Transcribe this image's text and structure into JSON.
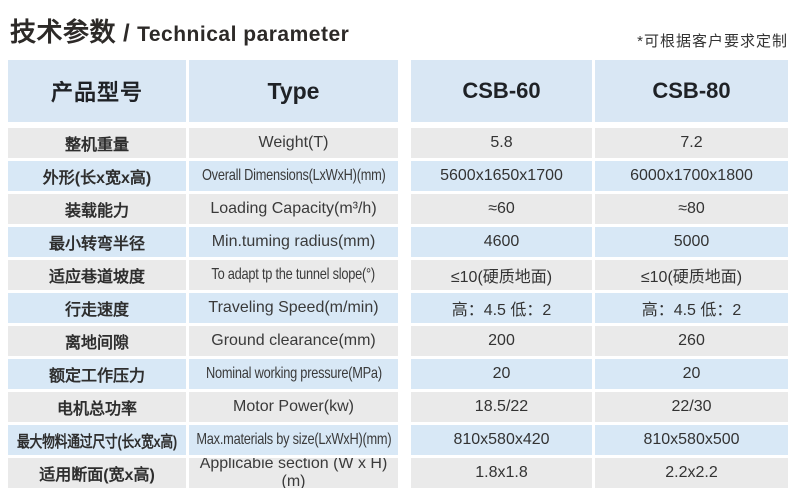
{
  "header": {
    "title_zh": "技术参数",
    "title_sep": "/",
    "title_en": "Technical parameter",
    "note": "*可根据客户要求定制"
  },
  "colors": {
    "header_blue": "#d9e7f4",
    "row_blue": "#d8e8f6",
    "row_gray": "#eaeaea",
    "text_dark": "#2e2e2e"
  },
  "table": {
    "columns": [
      {
        "label": "产品型号"
      },
      {
        "label": "Type"
      },
      {
        "label": "CSB-60"
      },
      {
        "label": "CSB-80"
      }
    ],
    "rows": [
      {
        "param_zh": "整机重量",
        "param_en": "Weight(T)",
        "csb60": "5.8",
        "csb80": "7.2",
        "zh_condensed": false,
        "en_condensed": false
      },
      {
        "param_zh": "外形(长x宽x高)",
        "param_en": "Overall Dimensions(LxWxH)(mm)",
        "csb60": "5600x1650x1700",
        "csb80": "6000x1700x1800",
        "zh_condensed": false,
        "en_condensed": true
      },
      {
        "param_zh": "装载能力",
        "param_en": "Loading Capacity(m³/h)",
        "csb60": "≈60",
        "csb80": "≈80",
        "zh_condensed": false,
        "en_condensed": false
      },
      {
        "param_zh": "最小转弯半径",
        "param_en": "Min.tuming radius(mm)",
        "csb60": "4600",
        "csb80": "5000",
        "zh_condensed": false,
        "en_condensed": false
      },
      {
        "param_zh": "适应巷道坡度",
        "param_en": "To adapt tp the tunnel slope(°)",
        "csb60": "≤10(硬质地面)",
        "csb80": "≤10(硬质地面)",
        "zh_condensed": false,
        "en_condensed": true
      },
      {
        "param_zh": "行走速度",
        "param_en": "Traveling Speed(m/min)",
        "csb60": "高：4.5 低：2",
        "csb80": "高：4.5 低：2",
        "zh_condensed": false,
        "en_condensed": false
      },
      {
        "param_zh": "离地间隙",
        "param_en": "Ground clearance(mm)",
        "csb60": "200",
        "csb80": "260",
        "zh_condensed": false,
        "en_condensed": false
      },
      {
        "param_zh": "额定工作压力",
        "param_en": "Nominal working pressure(MPa)",
        "csb60": "20",
        "csb80": "20",
        "zh_condensed": false,
        "en_condensed": true
      },
      {
        "param_zh": "电机总功率",
        "param_en": "Motor Power(kw)",
        "csb60": "18.5/22",
        "csb80": "22/30",
        "zh_condensed": false,
        "en_condensed": false
      },
      {
        "param_zh": "最大物料通过尺寸(长x宽x高)",
        "param_en": "Max.materials by size(LxWxH)(mm)",
        "csb60": "810x580x420",
        "csb80": "810x580x500",
        "zh_condensed": true,
        "en_condensed": true
      },
      {
        "param_zh": "适用断面(宽x高)",
        "param_en": "Applicabie section (W x H)(m)",
        "csb60": "1.8x1.8",
        "csb80": "2.2x2.2",
        "zh_condensed": false,
        "en_condensed": false
      }
    ]
  }
}
